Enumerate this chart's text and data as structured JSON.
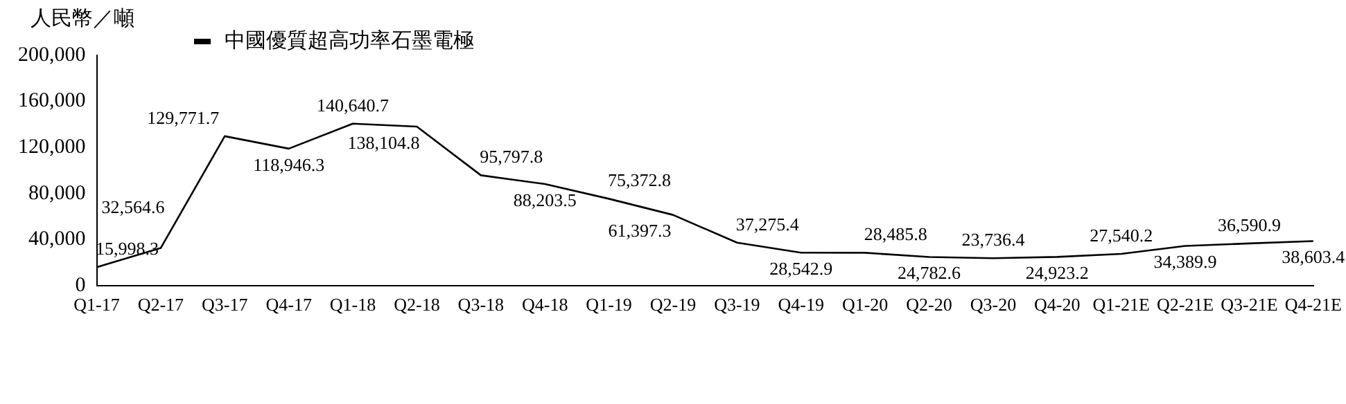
{
  "chart_data": {
    "type": "line",
    "ylabel": "人民幣／噸",
    "categories": [
      "Q1-17",
      "Q2-17",
      "Q3-17",
      "Q4-17",
      "Q1-18",
      "Q2-18",
      "Q3-18",
      "Q4-18",
      "Q1-19",
      "Q2-19",
      "Q3-19",
      "Q4-19",
      "Q1-20",
      "Q2-20",
      "Q3-20",
      "Q4-20",
      "Q1-21E",
      "Q2-21E",
      "Q3-21E",
      "Q4-21E"
    ],
    "series": [
      {
        "name": "中國優質超高功率石墨電極",
        "color": "#000000",
        "values": [
          15998.3,
          32564.6,
          129771.7,
          118946.3,
          140640.7,
          138104.8,
          95797.8,
          88203.5,
          75372.8,
          61397.3,
          37275.4,
          28542.9,
          28485.8,
          24782.6,
          23736.4,
          24923.2,
          27540.2,
          34389.9,
          36590.9,
          38603.4
        ],
        "value_labels": [
          "15,998.3",
          "32,564.6",
          "129,771.7",
          "118,946.3",
          "140,640.7",
          "138,104.8",
          "95,797.8",
          "88,203.5",
          "75,372.8",
          "61,397.3",
          "37,275.4",
          "28,542.9",
          "28,485.8",
          "24,782.6",
          "23,736.4",
          "24,923.2",
          "27,540.2",
          "34,389.9",
          "36,590.9",
          "38,603.4"
        ]
      }
    ],
    "ylim": [
      0,
      200000
    ],
    "yticks": [
      0,
      {
        "value": 40000,
        "label": "40,000"
      },
      {
        "value": 80000,
        "label": "80,000"
      },
      {
        "value": 120000,
        "label": "120,000"
      },
      {
        "value": 160000,
        "label": "160,000"
      },
      {
        "value": 200000,
        "label": "200,000"
      }
    ],
    "grid": false,
    "legend": "top left",
    "marker": "none",
    "line_style": "solid"
  }
}
